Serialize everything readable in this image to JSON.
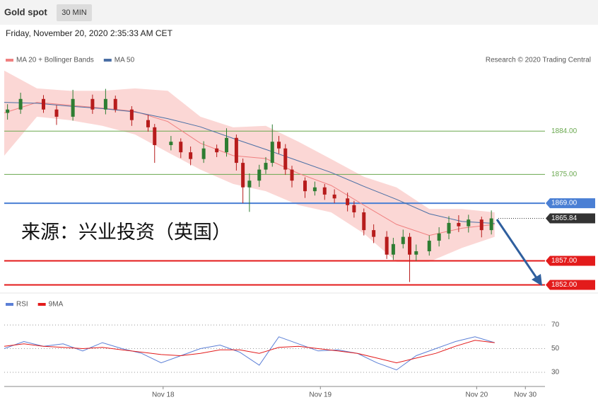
{
  "header": {
    "title": "Gold spot",
    "timeframe": "30 MIN",
    "timestamp": "Friday, November 20, 2020 2:35:33 AM CET",
    "credit": "Research © 2020 Trading Central",
    "watermark": "来源：兴业投资（英国）"
  },
  "chart_data": [
    {
      "type": "candlestick",
      "up_color": "#2e7d32",
      "down_color": "#b71c1c",
      "xlim": [
        0,
        165.4
      ],
      "ylim": [
        1850.6,
        1897.3
      ],
      "x": [
        1,
        5,
        12,
        16,
        21,
        27,
        31,
        34,
        39,
        44,
        46,
        51,
        54,
        57,
        61,
        65,
        68,
        71,
        73,
        75,
        78,
        80,
        82,
        84,
        86,
        88,
        92,
        95,
        98,
        101,
        105,
        107,
        110,
        113,
        117,
        119,
        122,
        124,
        126,
        130,
        133,
        136,
        139,
        142,
        146,
        149
      ],
      "open": [
        1887.8,
        1888.5,
        1890.7,
        1888.5,
        1887.0,
        1890.7,
        1888.5,
        1890.7,
        1888.5,
        1886.3,
        1884.8,
        1881.1,
        1881.8,
        1879.6,
        1878.2,
        1880.4,
        1879.6,
        1882.6,
        1877.4,
        1872.3,
        1873.7,
        1876.0,
        1877.4,
        1881.8,
        1880.4,
        1876.0,
        1873.7,
        1871.5,
        1872.3,
        1870.8,
        1870.0,
        1868.6,
        1867.1,
        1863.4,
        1862.0,
        1858.3,
        1860.5,
        1862.0,
        1858.3,
        1859.0,
        1861.2,
        1862.7,
        1864.9,
        1864.2,
        1865.6,
        1863.4
      ],
      "high": [
        1889.6,
        1892.0,
        1891.5,
        1889.4,
        1892.6,
        1891.6,
        1892.8,
        1891.4,
        1889.2,
        1887.4,
        1885.5,
        1883.0,
        1882.5,
        1880.8,
        1881.9,
        1881.2,
        1884.6,
        1883.3,
        1878.3,
        1875.2,
        1877.0,
        1878.6,
        1885.4,
        1883.0,
        1881.3,
        1876.8,
        1874.4,
        1873.5,
        1873.0,
        1871.9,
        1871.2,
        1869.5,
        1867.9,
        1864.6,
        1863.2,
        1861.8,
        1863.5,
        1862.8,
        1860.4,
        1862.3,
        1864.0,
        1866.3,
        1866.5,
        1866.6,
        1866.2,
        1867.5
      ],
      "low": [
        1886.4,
        1887.6,
        1887.8,
        1885.3,
        1886.2,
        1887.6,
        1887.5,
        1887.9,
        1885.1,
        1883.9,
        1877.4,
        1880.0,
        1878.4,
        1876.9,
        1877.4,
        1878.6,
        1878.7,
        1875.8,
        1869.0,
        1867.2,
        1872.4,
        1875.1,
        1876.6,
        1879.3,
        1874.9,
        1872.3,
        1870.1,
        1870.6,
        1869.7,
        1869.0,
        1867.3,
        1866.0,
        1862.3,
        1860.7,
        1857.4,
        1857.2,
        1859.6,
        1852.6,
        1857.0,
        1858.1,
        1860.0,
        1861.5,
        1863.0,
        1862.9,
        1861.9,
        1862.5
      ],
      "close": [
        1888.5,
        1890.7,
        1888.5,
        1887.0,
        1890.7,
        1888.5,
        1890.7,
        1888.5,
        1886.3,
        1884.8,
        1881.1,
        1881.8,
        1879.6,
        1878.2,
        1880.4,
        1879.6,
        1882.6,
        1877.4,
        1872.3,
        1873.7,
        1876.0,
        1877.4,
        1881.8,
        1880.4,
        1876.0,
        1873.7,
        1871.5,
        1872.3,
        1870.8,
        1870.0,
        1868.6,
        1867.1,
        1863.4,
        1862.0,
        1858.3,
        1860.5,
        1862.0,
        1858.3,
        1859.0,
        1861.2,
        1862.7,
        1864.9,
        1864.2,
        1865.6,
        1863.4,
        1865.84
      ],
      "band": {
        "color": "#fbd7d5",
        "x": [
          0,
          10,
          20,
          30,
          40,
          50,
          60,
          70,
          80,
          90,
          100,
          110,
          120,
          130,
          140,
          150
        ],
        "upper": [
          1896.6,
          1892.9,
          1892.4,
          1892.4,
          1892.9,
          1892.4,
          1887.0,
          1884.8,
          1885.1,
          1881.8,
          1878.2,
          1874.5,
          1872.3,
          1867.8,
          1867.8,
          1867.1
        ],
        "lower": [
          1878.9,
          1887.0,
          1886.3,
          1885.1,
          1883.3,
          1879.6,
          1876.0,
          1873.0,
          1871.5,
          1868.6,
          1867.1,
          1862.7,
          1856.8,
          1856.8,
          1859.7,
          1862.0
        ]
      },
      "series": [
        {
          "name": "MA 20 + Bollinger Bands",
          "color": "#f08080",
          "x": [
            0,
            10,
            20,
            30,
            40,
            50,
            60,
            70,
            80,
            90,
            100,
            110,
            120,
            130,
            140,
            150
          ],
          "values": [
            1887.8,
            1890.0,
            1889.4,
            1888.8,
            1888.1,
            1886.0,
            1881.5,
            1878.9,
            1878.3,
            1875.2,
            1872.7,
            1868.6,
            1864.6,
            1862.3,
            1863.8,
            1864.6
          ]
        },
        {
          "name": "MA 50",
          "color": "#4a6fa5",
          "x": [
            0,
            10,
            20,
            30,
            40,
            50,
            60,
            70,
            80,
            90,
            100,
            110,
            120,
            130,
            140,
            150
          ],
          "values": [
            1890.0,
            1889.8,
            1889.2,
            1888.7,
            1888.0,
            1886.6,
            1884.9,
            1882.5,
            1880.2,
            1877.8,
            1875.4,
            1872.5,
            1869.8,
            1866.8,
            1865.2,
            1864.8
          ]
        }
      ],
      "levels": [
        {
          "value": 1884,
          "label": "1884.00",
          "color": "#6aa84f",
          "label_box": false
        },
        {
          "value": 1875,
          "label": "1875.00",
          "color": "#6aa84f",
          "label_box": false
        },
        {
          "value": 1869,
          "label": "1869.00",
          "color": "#4a7fd4",
          "label_box": true
        },
        {
          "value": 1857,
          "label": "1857.00",
          "color": "#e31b1b",
          "label_box": true
        },
        {
          "value": 1852,
          "label": "1852.00",
          "color": "#e31b1b",
          "label_box": true
        }
      ],
      "current_price": 1865.84,
      "current_color": "#333333"
    },
    {
      "type": "line",
      "xlim": [
        0,
        165.4
      ],
      "ylim": [
        18,
        82
      ],
      "yticks": [
        30,
        50,
        70
      ],
      "xticks": [
        {
          "value": 48.6,
          "label": "Nov 18"
        },
        {
          "value": 96.7,
          "label": "Nov 19"
        },
        {
          "value": 144.5,
          "label": "Nov 20"
        },
        {
          "value": 159.4,
          "label": "Nov 30"
        }
      ],
      "series": [
        {
          "name": "RSI",
          "color": "#5b7fd6",
          "x": [
            0,
            6,
            12,
            18,
            24,
            30,
            36,
            42,
            48,
            54,
            60,
            66,
            72,
            78,
            84,
            90,
            96,
            102,
            108,
            114,
            120,
            126,
            132,
            138,
            144,
            150
          ],
          "values": [
            50,
            56,
            52,
            54,
            48,
            55,
            50,
            46,
            38,
            44,
            50,
            53,
            47,
            36,
            60,
            54,
            48,
            49,
            46,
            38,
            32,
            44,
            50,
            56,
            60,
            55
          ]
        },
        {
          "name": "9MA",
          "color": "#e31b1b",
          "x": [
            0,
            6,
            12,
            18,
            24,
            30,
            36,
            42,
            48,
            54,
            60,
            66,
            72,
            78,
            84,
            90,
            96,
            102,
            108,
            114,
            120,
            126,
            132,
            138,
            144,
            150
          ],
          "values": [
            52,
            54,
            52,
            51,
            50,
            51,
            49,
            47,
            45,
            44,
            46,
            49,
            49,
            46,
            51,
            52,
            50,
            48,
            46,
            42,
            38,
            42,
            46,
            52,
            57,
            55
          ]
        }
      ]
    }
  ]
}
